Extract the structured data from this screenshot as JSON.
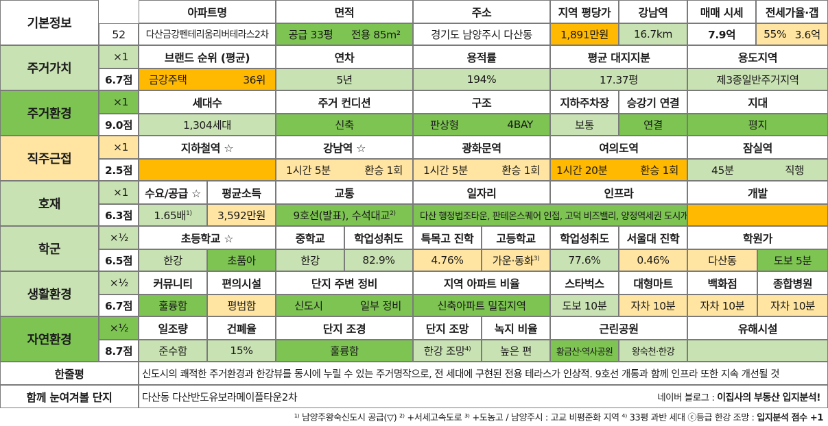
{
  "basic": {
    "title": "기본정보",
    "number": "52",
    "headers": [
      "아파트명",
      "면적",
      "주소",
      "지역 평당가",
      "강남역",
      "매매 시세",
      "전세가율·갭"
    ],
    "name": "다산금강펜테리움리버테라스2차",
    "area_supply": "공급 33평",
    "area_exclusive": "전용 85m²",
    "address": "경기도 남양주시 다산동",
    "price_per_pyeong": "1,891만원",
    "gangnam_distance": "16.7km",
    "sale_price": "7.9억",
    "jeonse_rate": "55%",
    "gap": "3.6억"
  },
  "sections": {
    "living_value": {
      "label": "주거가치",
      "multiplier": "×1",
      "score": "6.7점",
      "headers": [
        "브랜드 순위 (평균)",
        "연차",
        "용적률",
        "평균 대지지분",
        "용도지역"
      ],
      "brand": "금강주택",
      "brand_rank": "36위",
      "age": "5년",
      "far": "194%",
      "land_share": "17.37평",
      "zoning": "제3종일반주거지역"
    },
    "living_env": {
      "label": "주거환경",
      "multiplier": "×1",
      "score": "9.0점",
      "headers": [
        "세대수",
        "주거 컨디션",
        "구조",
        "지하주차장",
        "승강기 연결",
        "지대"
      ],
      "households": "1,304세대",
      "condition": "신축",
      "structure_type": "판상형",
      "bays": "4BAY",
      "parking": "보통",
      "elevator": "연결",
      "terrain": "평지"
    },
    "commute": {
      "label": "직주근접",
      "multiplier": "×1",
      "score": "2.5점",
      "headers": [
        "지하철역 ☆",
        "강남역 ☆",
        "광화문역",
        "여의도역",
        "잠실역"
      ],
      "gangnam_time": "1시간 5분",
      "gangnam_transfer": "환승 1회",
      "gwanghwamun_time": "1시간 5분",
      "gwanghwamun_transfer": "환승 1회",
      "yeouido_time": "1시간 20분",
      "yeouido_transfer": "환승 1회",
      "jamsil_time": "45분",
      "jamsil_transfer": "직행"
    },
    "development": {
      "label": "호재",
      "multiplier": "×1",
      "score": "6.3점",
      "headers": [
        "수요/공급 ☆",
        "평균소득",
        "교통",
        "일자리",
        "인프라",
        "개발"
      ],
      "supply_ratio": "1.65배",
      "supply_note": "1)",
      "income": "3,592만원",
      "transport": "9호선(발표), 수석대교",
      "transport_note": "2)",
      "jobs_infra_dev": "다산 행정법조타운, 판테온스퀘어 인접, 고덕 비즈밸리, 양정역세권 도시개발, 남양주왕숙신도시"
    },
    "school": {
      "label": "학군",
      "multiplier": "×½",
      "score": "6.5점",
      "headers": [
        "초등학교 ☆",
        "중학교",
        "학업성취도",
        "특목고 진학",
        "고등학교",
        "학업성취도",
        "서울대 진학",
        "학원가"
      ],
      "elementary": "한강",
      "elementary_type": "초품아",
      "middle": "한강",
      "middle_achievement": "82.9%",
      "special_high": "4.76%",
      "high": "가운·동화",
      "high_note": "3)",
      "high_achievement": "77.6%",
      "snu": "0.46%",
      "academy_area": "다산동",
      "academy_distance": "도보 5분"
    },
    "life_env": {
      "label": "생활환경",
      "multiplier": "×½",
      "score": "6.7점",
      "headers": [
        "커뮤니티",
        "편의시설",
        "단지 주변 정비",
        "지역 아파트 비율",
        "스타벅스",
        "대형마트",
        "백화점",
        "종합병원"
      ],
      "community": "훌륭함",
      "convenience": "평범함",
      "surroundings_a": "신도시",
      "surroundings_b": "일부 정비",
      "apt_ratio": "신축아파트 밀집지역",
      "starbucks": "도보 10분",
      "mart": "자차 10분",
      "department": "자차 10분",
      "hospital": "자차 10분"
    },
    "nature_env": {
      "label": "자연환경",
      "multiplier": "×½",
      "score": "8.7점",
      "headers": [
        "일조량",
        "건폐율",
        "단지 조경",
        "단지 조망",
        "녹지 비율",
        "근린공원",
        "유해시설"
      ],
      "sunlight": "준수함",
      "coverage": "15%",
      "landscaping": "훌륭함",
      "view": "한강 조망",
      "view_note": "4)",
      "green_ratio": "높은 편",
      "park_a": "황금산·역사공원",
      "park_b": "왕숙천·한강",
      "hazard": ""
    }
  },
  "summary": {
    "label": "한줄평",
    "text": "신도시의 쾌적한 주거환경과 한강뷰를 동시에 누릴 수 있는 주거명작으로, 전 세대에 구현된 전용 테라스가 인상적. 9호선 개통과 함께 인프라 또한 지속 개선될 것"
  },
  "compare": {
    "label": "함께 눈여겨볼 단지",
    "text": "다산동 다산반도유보라메이플타운2차",
    "source_prefix": "네이버 블로그 : ",
    "source_name": "이집사의 부동산 입지분석!"
  },
  "footnote": {
    "text": "¹⁾ 남양주왕숙신도시 공급(▽)  ²⁾ +서세고속도로  ³⁾ +도농고 / 남양주시 : 고교 비평준화 지역  ⁴⁾ 33평 과반 세대 ⓒ등급 한강 조망 : ",
    "bold": "입지분석 점수 +1"
  },
  "colors": {
    "light_green": "#c9e2b3",
    "green": "#7dc452",
    "light_yellow": "#ffe5a1",
    "orange": "#ffb900"
  }
}
